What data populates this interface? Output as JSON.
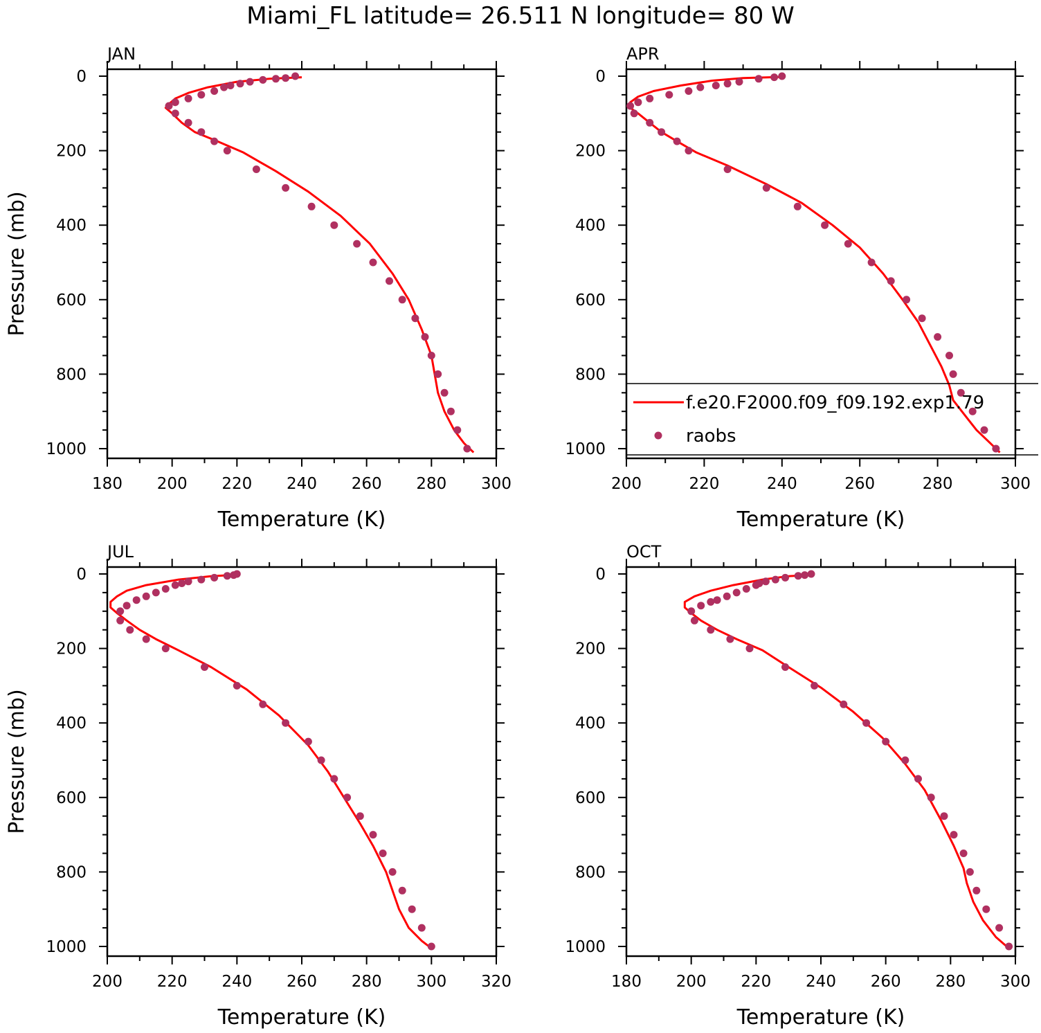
{
  "title": "Miami_FL  latitude= 26.511 N longitude= 80 W",
  "colors": {
    "model_line": "#ff0000",
    "raobs_marker": "#b03060",
    "axes": "#000000"
  },
  "legend": {
    "panel": "APR",
    "model_label": "f.e20.F2000.f09_f09.192.exp1.79",
    "obs_label": "raobs"
  },
  "chart_data": [
    {
      "type": "line",
      "panel": "JAN",
      "xlabel": "Temperature (K)",
      "ylabel": "Pressure (mb)",
      "xlim": [
        180,
        300
      ],
      "ylim": [
        1000,
        0
      ],
      "xticks": [
        180,
        200,
        220,
        240,
        260,
        280,
        300
      ],
      "yticks": [
        0,
        200,
        400,
        600,
        800,
        1000
      ],
      "series": [
        {
          "name": "f.e20.F2000.f09_f09.192.exp1.79",
          "style": "line",
          "x": [
            240,
            230,
            220,
            211,
            205,
            201,
            199,
            198,
            200,
            203,
            207,
            214,
            222,
            232,
            242,
            252,
            261,
            268,
            273,
            277,
            280,
            281,
            282,
            284,
            287,
            290,
            293
          ],
          "y": [
            3,
            7,
            15,
            30,
            45,
            60,
            75,
            85,
            100,
            125,
            150,
            175,
            205,
            255,
            310,
            375,
            450,
            530,
            600,
            680,
            750,
            800,
            850,
            900,
            950,
            985,
            1010
          ]
        },
        {
          "name": "raobs",
          "style": "markers",
          "x": [
            238,
            235,
            232,
            228,
            224,
            221,
            218,
            216,
            213,
            209,
            205,
            201,
            199,
            201,
            205,
            209,
            213,
            217,
            226,
            235,
            243,
            250,
            257,
            262,
            267,
            271,
            275,
            278,
            280,
            282,
            284,
            286,
            288,
            291
          ],
          "y": [
            0,
            5,
            7,
            10,
            15,
            20,
            25,
            30,
            40,
            50,
            60,
            70,
            80,
            100,
            125,
            150,
            175,
            200,
            250,
            300,
            350,
            400,
            450,
            500,
            550,
            600,
            650,
            700,
            750,
            800,
            850,
            900,
            950,
            1000
          ]
        }
      ]
    },
    {
      "type": "line",
      "panel": "APR",
      "xlabel": "Temperature (K)",
      "ylabel": "",
      "xlim": [
        200,
        300
      ],
      "ylim": [
        1000,
        0
      ],
      "xticks": [
        200,
        220,
        240,
        260,
        280,
        300
      ],
      "yticks": [
        0,
        200,
        400,
        600,
        800,
        1000
      ],
      "series": [
        {
          "name": "f.e20.F2000.f09_f09.192.exp1.79",
          "style": "line",
          "x": [
            240,
            230,
            222,
            214,
            207,
            203,
            201,
            201,
            203,
            206,
            209,
            213,
            218,
            226,
            236,
            245,
            253,
            260,
            266,
            271,
            275,
            278,
            281,
            283,
            284,
            287,
            290,
            293,
            296
          ],
          "y": [
            2,
            5,
            12,
            25,
            40,
            55,
            70,
            85,
            100,
            125,
            150,
            175,
            205,
            240,
            290,
            340,
            400,
            460,
            530,
            600,
            660,
            720,
            780,
            830,
            870,
            910,
            950,
            980,
            1010
          ]
        },
        {
          "name": "raobs",
          "style": "markers",
          "x": [
            240,
            238,
            234,
            229,
            226,
            223,
            219,
            216,
            211,
            206,
            203,
            201,
            202,
            206,
            209,
            213,
            216,
            226,
            236,
            244,
            251,
            257,
            263,
            268,
            272,
            276,
            280,
            283,
            284,
            286,
            289,
            292,
            295
          ],
          "y": [
            0,
            3,
            7,
            15,
            20,
            25,
            30,
            40,
            50,
            60,
            70,
            80,
            100,
            125,
            150,
            175,
            200,
            250,
            300,
            350,
            400,
            450,
            500,
            550,
            600,
            650,
            700,
            750,
            800,
            850,
            900,
            950,
            1000
          ]
        }
      ]
    },
    {
      "type": "line",
      "panel": "JUL",
      "xlabel": "Temperature (K)",
      "ylabel": "Pressure (mb)",
      "xlim": [
        200,
        320
      ],
      "ylim": [
        1000,
        0
      ],
      "xticks": [
        200,
        220,
        240,
        260,
        280,
        300,
        320
      ],
      "yticks": [
        0,
        200,
        400,
        600,
        800,
        1000
      ],
      "series": [
        {
          "name": "f.e20.F2000.f09_f09.192.exp1.79",
          "style": "line",
          "x": [
            240,
            232,
            222,
            212,
            206,
            203,
            201,
            201,
            203,
            206,
            210,
            215,
            222,
            232,
            243,
            253,
            262,
            268,
            273,
            278,
            282,
            286,
            288,
            290,
            293,
            297,
            300
          ],
          "y": [
            2,
            6,
            15,
            30,
            45,
            60,
            75,
            90,
            105,
            125,
            150,
            175,
            205,
            250,
            310,
            380,
            460,
            530,
            600,
            670,
            730,
            800,
            850,
            900,
            950,
            985,
            1005
          ]
        },
        {
          "name": "raobs",
          "style": "markers",
          "x": [
            240,
            239,
            237,
            233,
            229,
            225,
            223,
            221,
            218,
            215,
            212,
            209,
            206,
            204,
            204,
            207,
            212,
            218,
            230,
            240,
            248,
            255,
            262,
            266,
            270,
            274,
            278,
            282,
            285,
            288,
            291,
            294,
            297,
            300
          ],
          "y": [
            0,
            3,
            5,
            10,
            15,
            20,
            25,
            30,
            40,
            50,
            60,
            70,
            85,
            100,
            125,
            150,
            175,
            200,
            250,
            300,
            350,
            400,
            450,
            500,
            550,
            600,
            650,
            700,
            750,
            800,
            850,
            900,
            950,
            1000
          ]
        }
      ]
    },
    {
      "type": "line",
      "panel": "OCT",
      "xlabel": "Temperature (K)",
      "ylabel": "",
      "xlim": [
        180,
        300
      ],
      "ylim": [
        1000,
        0
      ],
      "xticks": [
        180,
        200,
        220,
        240,
        260,
        280,
        300
      ],
      "yticks": [
        0,
        200,
        400,
        600,
        800,
        1000
      ],
      "series": [
        {
          "name": "f.e20.F2000.f09_f09.192.exp1.79",
          "style": "line",
          "x": [
            238,
            230,
            222,
            213,
            206,
            201,
            198,
            198,
            200,
            203,
            208,
            214,
            222,
            230,
            240,
            250,
            259,
            266,
            272,
            277,
            281,
            284,
            285,
            287,
            290,
            294,
            298
          ],
          "y": [
            2,
            6,
            15,
            30,
            45,
            60,
            75,
            90,
            105,
            125,
            150,
            175,
            205,
            250,
            305,
            370,
            440,
            510,
            580,
            660,
            730,
            790,
            830,
            880,
            930,
            975,
            1005
          ]
        },
        {
          "name": "raobs",
          "style": "markers",
          "x": [
            237,
            235,
            233,
            229,
            226,
            223,
            221,
            220,
            217,
            214,
            211,
            208,
            206,
            203,
            200,
            201,
            206,
            212,
            218,
            229,
            238,
            247,
            254,
            260,
            266,
            270,
            274,
            278,
            281,
            284,
            286,
            288,
            291,
            295,
            298
          ],
          "y": [
            0,
            3,
            5,
            10,
            15,
            20,
            25,
            30,
            40,
            50,
            60,
            70,
            75,
            85,
            100,
            125,
            150,
            175,
            200,
            250,
            300,
            350,
            400,
            450,
            500,
            550,
            600,
            650,
            700,
            750,
            800,
            850,
            900,
            950,
            1000
          ]
        }
      ]
    }
  ]
}
